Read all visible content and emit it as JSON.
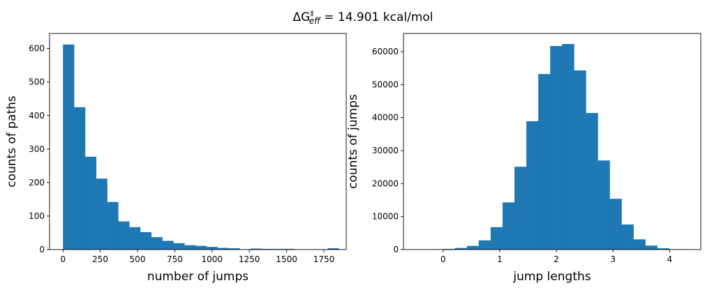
{
  "figure": {
    "title_parts": {
      "delta": "ΔG",
      "sup": "‡",
      "sub": "eff",
      "rest": " = 14.901 kcal/mol"
    },
    "bar_color": "#1f77b4"
  },
  "chart_data": [
    {
      "type": "bar",
      "title": "",
      "xlabel": "number of jumps",
      "ylabel": "counts of paths",
      "xlim": [
        -90,
        1900
      ],
      "ylim": [
        0,
        645
      ],
      "xticks": [
        0,
        250,
        500,
        750,
        1000,
        1250,
        1500,
        1750
      ],
      "yticks": [
        0,
        100,
        200,
        300,
        400,
        500,
        600
      ],
      "bin_width": 74,
      "bin_starts": [
        0,
        74,
        148,
        222,
        296,
        370,
        444,
        518,
        592,
        666,
        740,
        814,
        888,
        962,
        1036,
        1110,
        1184,
        1258,
        1332,
        1406,
        1480,
        1554,
        1628,
        1702,
        1776
      ],
      "values": [
        612,
        425,
        277,
        212,
        142,
        84,
        67,
        52,
        37,
        26,
        19,
        13,
        11,
        8,
        5,
        4,
        1,
        3,
        2,
        2,
        2,
        0,
        0,
        0,
        4
      ]
    },
    {
      "type": "bar",
      "title": "",
      "xlabel": "jump lengths",
      "ylabel": "counts of jumps",
      "xlim": [
        -0.7,
        4.55
      ],
      "ylim": [
        0,
        65500
      ],
      "xticks": [
        0,
        1,
        2,
        3,
        4
      ],
      "yticks": [
        0,
        10000,
        20000,
        30000,
        40000,
        50000,
        60000
      ],
      "bin_width": 0.21,
      "bin_starts": [
        -0.42,
        -0.21,
        0.0,
        0.21,
        0.42,
        0.63,
        0.84,
        1.05,
        1.26,
        1.47,
        1.68,
        1.89,
        2.1,
        2.31,
        2.52,
        2.73,
        2.94,
        3.15,
        3.36,
        3.57,
        3.78,
        3.99,
        4.2
      ],
      "values": [
        30,
        50,
        200,
        500,
        1100,
        2800,
        6800,
        14300,
        25100,
        38900,
        53200,
        61700,
        62300,
        54300,
        41400,
        27000,
        15400,
        7600,
        3100,
        1200,
        400,
        100,
        50
      ]
    }
  ]
}
